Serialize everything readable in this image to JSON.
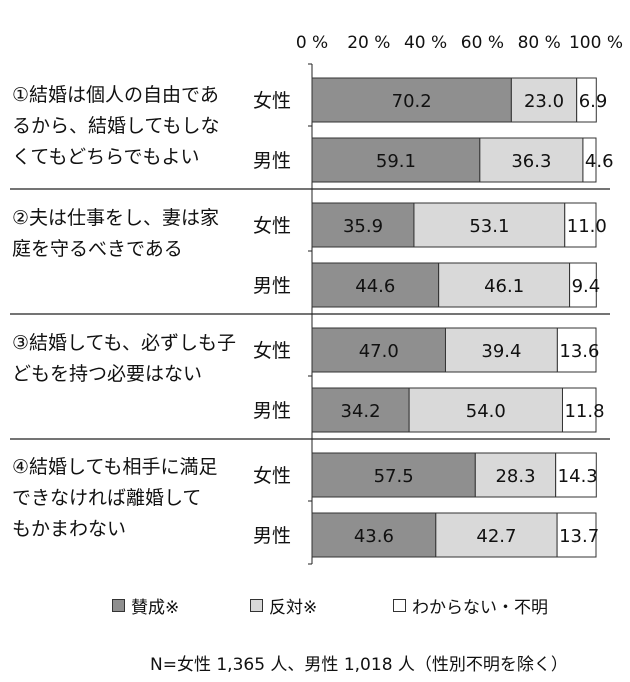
{
  "chart_data": {
    "type": "bar",
    "stacked": true,
    "orientation": "horizontal",
    "xlim": [
      0,
      100
    ],
    "x_ticks": [
      "0 %",
      "20 %",
      "40 %",
      "60 %",
      "80 %",
      "100 %"
    ],
    "groups": [
      {
        "label": "①結婚は個人の自由であ\nるから、結婚してもしな\nくてもどちらでもよい",
        "bars": [
          {
            "label": "女性",
            "values": [
              70.2,
              23.0,
              6.9
            ],
            "display": [
              "70.2",
              "23.0",
              "6.9"
            ]
          },
          {
            "label": "男性",
            "values": [
              59.1,
              36.3,
              4.6
            ],
            "display": [
              "59.1",
              "36.3",
              "4.6"
            ]
          }
        ]
      },
      {
        "label": "②夫は仕事をし、妻は家\n庭を守るべきである",
        "bars": [
          {
            "label": "女性",
            "values": [
              35.9,
              53.1,
              11.0
            ],
            "display": [
              "35.9",
              "53.1",
              "11.0"
            ]
          },
          {
            "label": "男性",
            "values": [
              44.6,
              46.1,
              9.4
            ],
            "display": [
              "44.6",
              "46.1",
              "9.4"
            ]
          }
        ]
      },
      {
        "label": "③結婚しても、必ずしも子\nどもを持つ必要はない",
        "bars": [
          {
            "label": "女性",
            "values": [
              47.0,
              39.4,
              13.6
            ],
            "display": [
              "47.0",
              "39.4",
              "13.6"
            ]
          },
          {
            "label": "男性",
            "values": [
              34.2,
              54.0,
              11.8
            ],
            "display": [
              "34.2",
              "54.0",
              "11.8"
            ]
          }
        ]
      },
      {
        "label": "④結婚しても相手に満足\nできなければ離婚して\nもかまわない",
        "bars": [
          {
            "label": "女性",
            "values": [
              57.5,
              28.3,
              14.3
            ],
            "display": [
              "57.5",
              "28.3",
              "14.3"
            ]
          },
          {
            "label": "男性",
            "values": [
              43.6,
              42.7,
              13.7
            ],
            "display": [
              "43.6",
              "42.7",
              "13.7"
            ]
          }
        ]
      }
    ],
    "series": [
      {
        "name": "賛成※",
        "color": "#8f8f8f"
      },
      {
        "name": "反対※",
        "color": "#d9d9d9"
      },
      {
        "name": "わからない・不明",
        "color": "#ffffff"
      }
    ],
    "legend_position": "bottom",
    "note": "N=女性 1,365 人、男性 1,018 人（性別不明を除く）"
  }
}
